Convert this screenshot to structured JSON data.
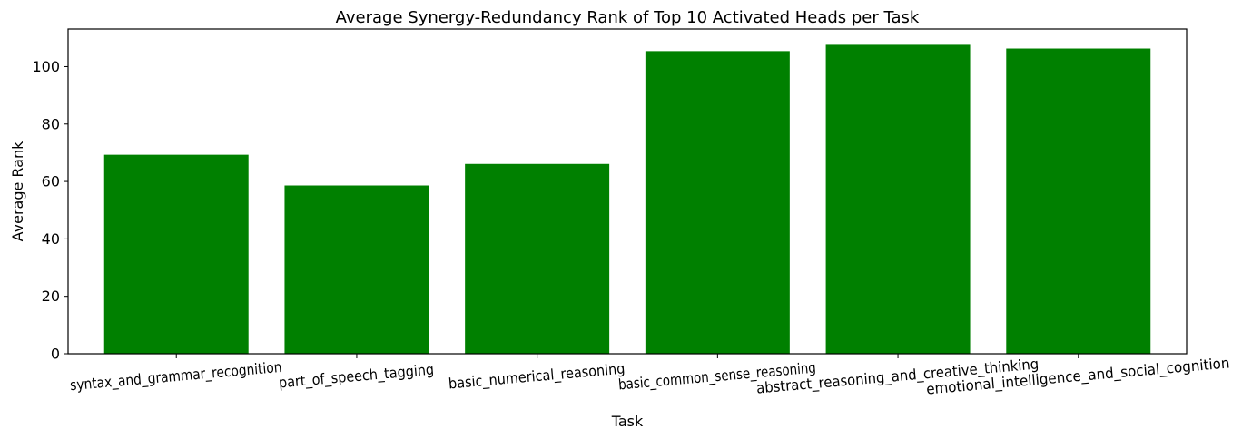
{
  "chart_data": {
    "type": "bar",
    "title": "Average Synergy-Redundancy Rank of Top 10 Activated Heads per Task",
    "xlabel": "Task",
    "ylabel": "Average Rank",
    "categories": [
      "syntax_and_grammar_recognition",
      "part_of_speech_tagging",
      "basic_numerical_reasoning",
      "basic_common_sense_reasoning",
      "abstract_reasoning_and_creative_thinking",
      "emotional_intelligence_and_social_cognition"
    ],
    "values": [
      69.3,
      58.6,
      66.1,
      105.4,
      107.6,
      106.3
    ],
    "ylim": [
      0,
      113.1
    ],
    "yticks": [
      0,
      20,
      40,
      60,
      80,
      100
    ],
    "bar_color": "#008000",
    "grid": false,
    "legend": "none",
    "xtick_rotation": "slight counter-clockwise"
  }
}
